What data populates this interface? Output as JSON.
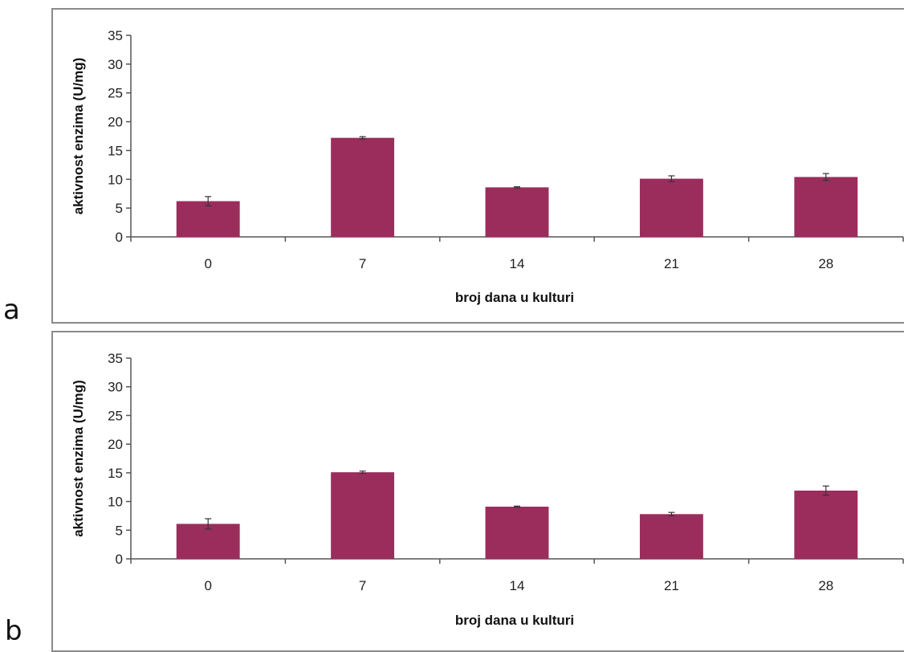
{
  "panels": [
    "a",
    "b"
  ],
  "chart_data": [
    {
      "type": "bar",
      "panel": "a",
      "categories": [
        "0",
        "7",
        "14",
        "21",
        "28"
      ],
      "values": [
        6.2,
        17.2,
        8.6,
        10.1,
        10.4
      ],
      "errors": [
        0.8,
        0.2,
        0.1,
        0.5,
        0.6
      ],
      "xlabel": "broj dana u kulturi",
      "ylabel": "aktivnost enzima (U/mg)",
      "ylim": [
        0,
        35
      ],
      "yticks": [
        0,
        5,
        10,
        15,
        20,
        25,
        30,
        35
      ],
      "bar_color": "#9b2d5c",
      "grid": false,
      "legend": "none"
    },
    {
      "type": "bar",
      "panel": "b",
      "categories": [
        "0",
        "7",
        "14",
        "21",
        "28"
      ],
      "values": [
        6.1,
        15.1,
        9.1,
        7.8,
        11.9
      ],
      "errors": [
        0.9,
        0.2,
        0.1,
        0.3,
        0.8
      ],
      "xlabel": "broj dana u kulturi",
      "ylabel": "aktivnost enzima (U/mg)",
      "ylim": [
        0,
        35
      ],
      "yticks": [
        0,
        5,
        10,
        15,
        20,
        25,
        30,
        35
      ],
      "bar_color": "#9b2d5c",
      "grid": false,
      "legend": "none"
    }
  ]
}
